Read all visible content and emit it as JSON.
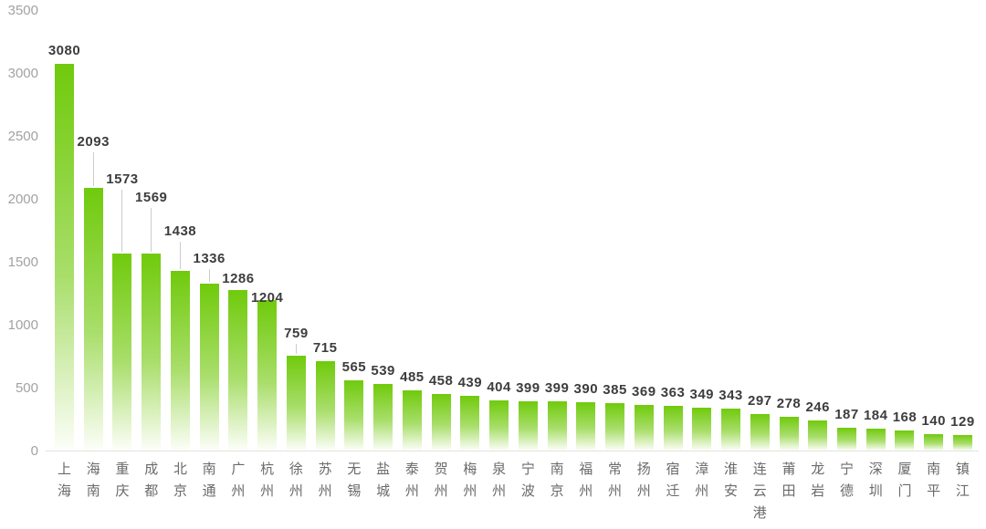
{
  "chart_data": {
    "type": "bar",
    "title": "",
    "xlabel": "",
    "ylabel": "",
    "legend": "none",
    "grid": "off",
    "ylim": [
      0,
      3500
    ],
    "yticks": [
      0,
      500,
      1000,
      1500,
      2000,
      2500,
      3000,
      3500
    ],
    "categories": [
      "上海",
      "海南",
      "重庆",
      "成都",
      "北京",
      "南通",
      "广州",
      "杭州",
      "徐州",
      "苏州",
      "无锡",
      "盐城",
      "泰州",
      "贺州",
      "梅州",
      "泉州",
      "宁波",
      "南京",
      "福州",
      "常州",
      "扬州",
      "宿迁",
      "漳州",
      "淮安",
      "连云港",
      "莆田",
      "龙岩",
      "宁德",
      "深圳",
      "厦门",
      "南平",
      "镇江"
    ],
    "values": [
      3080,
      2093,
      1573,
      1569,
      1438,
      1336,
      1286,
      1204,
      759,
      715,
      565,
      539,
      485,
      458,
      439,
      404,
      399,
      399,
      390,
      385,
      369,
      363,
      349,
      343,
      297,
      278,
      246,
      187,
      184,
      168,
      140,
      129
    ],
    "bar_label_overrides": [
      {
        "index": 1,
        "label_y": 156,
        "leader_line": true
      },
      {
        "index": 2,
        "label_y": 197,
        "leader_line": true
      },
      {
        "index": 3,
        "label_y": 217,
        "leader_line": true
      },
      {
        "index": 4,
        "label_y": 254,
        "leader_line": true
      },
      {
        "index": 5,
        "label_y": 284,
        "leader_line": true
      },
      {
        "index": 6,
        "label_y": 306,
        "leader_line": false
      },
      {
        "index": 7,
        "label_y": 327,
        "leader_line": false
      },
      {
        "index": 8,
        "label_y": 366,
        "leader_line": true
      },
      {
        "index": 9,
        "label_y": 382,
        "leader_line": false
      }
    ],
    "colors": {
      "bar_gradient_top": "#70ca0c",
      "bar_gradient_mid": "#a9de6b",
      "bar_gradient_bottom": "#fdfef9",
      "value_label": "#3d3d3d",
      "axis_label": "#a2a2a2",
      "category_label": "#6a6a6a",
      "leader_line": "#cccccc",
      "baseline": "#e3e3e3"
    }
  }
}
